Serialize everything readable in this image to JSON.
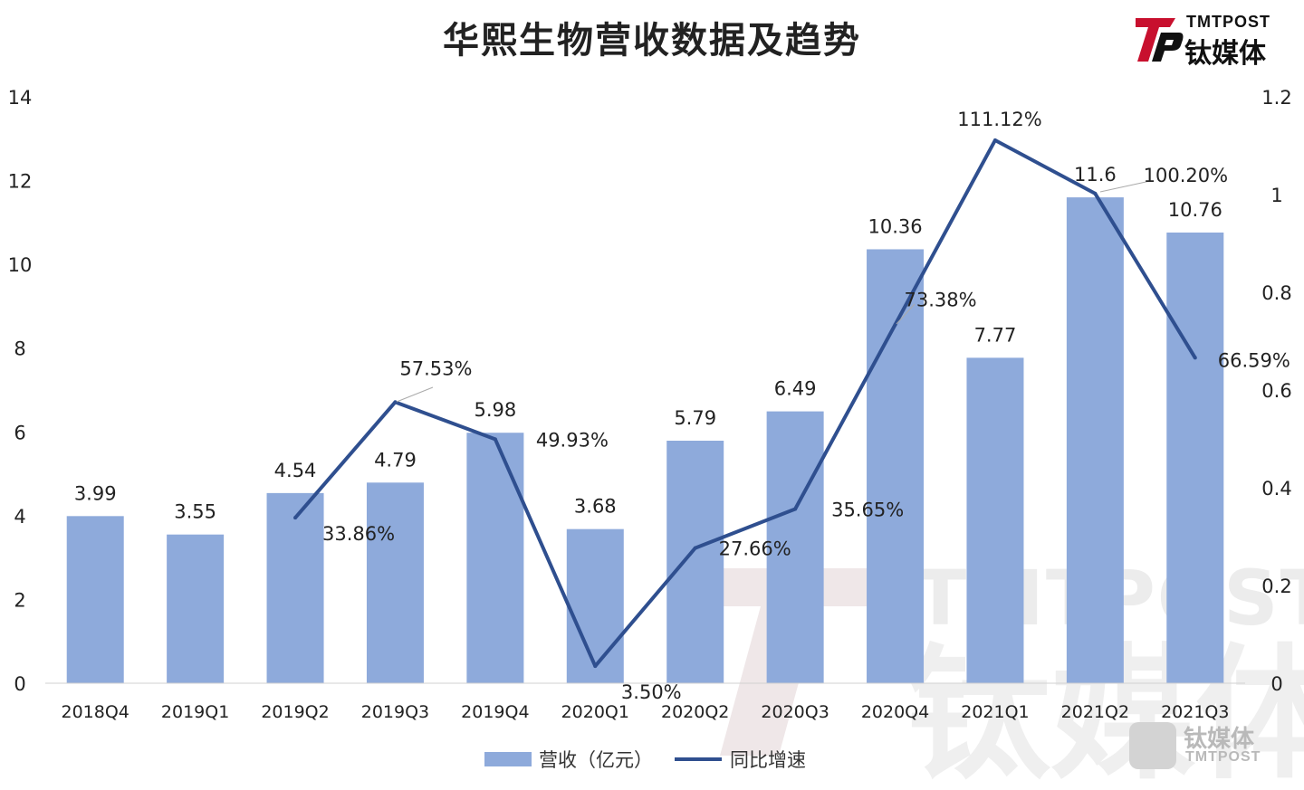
{
  "title": "华熙生物营收数据及趋势",
  "logo": {
    "en": "TMTPOST",
    "cn": "钛媒体"
  },
  "watermark": {
    "en": "TMTPOST",
    "cn": "钛媒体"
  },
  "colors": {
    "bar": "#8eaadb",
    "line": "#2f4f8f",
    "text": "#222222",
    "watermark": "#e9e9e9",
    "brand_red": "#c8102e"
  },
  "chart_data": {
    "type": "bar",
    "title": "华熙生物营收数据及趋势",
    "categories": [
      "2018Q4",
      "2019Q1",
      "2019Q2",
      "2019Q3",
      "2019Q4",
      "2020Q1",
      "2020Q2",
      "2020Q3",
      "2020Q4",
      "2021Q1",
      "2021Q2",
      "2021Q3"
    ],
    "series": [
      {
        "name": "营收（亿元）",
        "type": "bar",
        "axis": "left",
        "values": [
          3.99,
          3.55,
          4.54,
          4.79,
          5.98,
          3.68,
          5.79,
          6.49,
          10.36,
          7.77,
          11.6,
          10.76
        ],
        "labels": [
          "3.99",
          "3.55",
          "4.54",
          "4.79",
          "5.98",
          "3.68",
          "5.79",
          "6.49",
          "10.36",
          "7.77",
          "11.6",
          "10.76"
        ]
      },
      {
        "name": "同比增速",
        "type": "line",
        "axis": "right",
        "values": [
          null,
          null,
          0.3386,
          0.5753,
          0.4993,
          0.035,
          0.2766,
          0.3565,
          0.7338,
          1.1112,
          1.002,
          0.6659
        ],
        "labels": [
          "",
          "",
          "33.86%",
          "57.53%",
          "49.93%",
          "3.50%",
          "27.66%",
          "35.65%",
          "73.38%",
          "111.12%",
          "100.20%",
          "66.59%"
        ]
      }
    ],
    "y_left": {
      "min": 0,
      "max": 14,
      "ticks": [
        "0",
        "2",
        "4",
        "6",
        "8",
        "10",
        "12",
        "14"
      ]
    },
    "y_right": {
      "min": 0,
      "max": 1.2,
      "ticks": [
        "0",
        "0.2",
        "0.4",
        "0.6",
        "0.8",
        "1",
        "1.2"
      ]
    },
    "legend": {
      "position": "bottom",
      "items": [
        "营收（亿元）",
        "同比增速"
      ]
    },
    "grid": false
  }
}
